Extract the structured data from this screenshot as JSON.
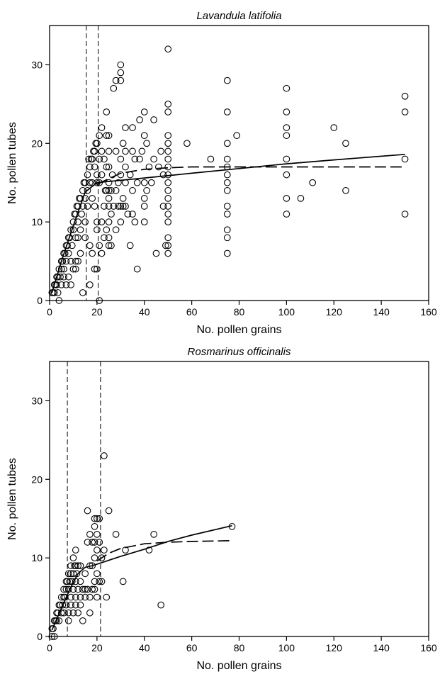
{
  "chart_data": [
    {
      "type": "scatter",
      "title": "Lavandula latifolia",
      "xlabel": "No. pollen grains",
      "ylabel": "No. pollen tubes",
      "xlim": [
        0,
        160
      ],
      "ylim": [
        0,
        35
      ],
      "xticks": [
        0,
        20,
        40,
        60,
        80,
        100,
        120,
        140,
        160
      ],
      "yticks": [
        0,
        10,
        20,
        30
      ],
      "grid": false,
      "points": [
        [
          1,
          1
        ],
        [
          1.5,
          1
        ],
        [
          2,
          2
        ],
        [
          2,
          1
        ],
        [
          2.5,
          2
        ],
        [
          3,
          3
        ],
        [
          3,
          2
        ],
        [
          3.5,
          1
        ],
        [
          3.5,
          3
        ],
        [
          4,
          0
        ],
        [
          4,
          4
        ],
        [
          4.5,
          3
        ],
        [
          5,
          5
        ],
        [
          5,
          2
        ],
        [
          5,
          4
        ],
        [
          5.5,
          5
        ],
        [
          6,
          6
        ],
        [
          6,
          4
        ],
        [
          6,
          3
        ],
        [
          6.5,
          6
        ],
        [
          7,
          7
        ],
        [
          7,
          5
        ],
        [
          7,
          2
        ],
        [
          7.5,
          7
        ],
        [
          8,
          8
        ],
        [
          8,
          6
        ],
        [
          8,
          3
        ],
        [
          8.5,
          8
        ],
        [
          9,
          9
        ],
        [
          9,
          5
        ],
        [
          9,
          2
        ],
        [
          9.5,
          7
        ],
        [
          10,
          10
        ],
        [
          10,
          9
        ],
        [
          10,
          4
        ],
        [
          10.5,
          11
        ],
        [
          11,
          11
        ],
        [
          11,
          8
        ],
        [
          11,
          5
        ],
        [
          11,
          4
        ],
        [
          11.5,
          12
        ],
        [
          12,
          12
        ],
        [
          12,
          10
        ],
        [
          12,
          8
        ],
        [
          12,
          5
        ],
        [
          12.5,
          13
        ],
        [
          13,
          13
        ],
        [
          13,
          9
        ],
        [
          13,
          6
        ],
        [
          13.5,
          11
        ],
        [
          14,
          14
        ],
        [
          14,
          12
        ],
        [
          14,
          1
        ],
        [
          14.5,
          15
        ],
        [
          15,
          15
        ],
        [
          15,
          13
        ],
        [
          15,
          10
        ],
        [
          15,
          8
        ],
        [
          16,
          14
        ],
        [
          16,
          16
        ],
        [
          16,
          12
        ],
        [
          16.5,
          18
        ],
        [
          17,
          17
        ],
        [
          17,
          15
        ],
        [
          17,
          7
        ],
        [
          17,
          2
        ],
        [
          17.5,
          18
        ],
        [
          18,
          18
        ],
        [
          18,
          15
        ],
        [
          18,
          13
        ],
        [
          18,
          6
        ],
        [
          18.5,
          19
        ],
        [
          19,
          19
        ],
        [
          19,
          17
        ],
        [
          19,
          12
        ],
        [
          19,
          4
        ],
        [
          19.5,
          20
        ],
        [
          20,
          20
        ],
        [
          20,
          16
        ],
        [
          20,
          15
        ],
        [
          20,
          10
        ],
        [
          20,
          9
        ],
        [
          20,
          4
        ],
        [
          21,
          21
        ],
        [
          21,
          0
        ],
        [
          21,
          18
        ],
        [
          21,
          15
        ],
        [
          21,
          7
        ],
        [
          22,
          22
        ],
        [
          22,
          19
        ],
        [
          22,
          16
        ],
        [
          22,
          10
        ],
        [
          22,
          6
        ],
        [
          23,
          18
        ],
        [
          23,
          12
        ],
        [
          23,
          8
        ],
        [
          23.5,
          14
        ],
        [
          24,
          24
        ],
        [
          24,
          21
        ],
        [
          24,
          17
        ],
        [
          24,
          14
        ],
        [
          24,
          9
        ],
        [
          25,
          21
        ],
        [
          25,
          19
        ],
        [
          25,
          17
        ],
        [
          25,
          15
        ],
        [
          25,
          14
        ],
        [
          25,
          13
        ],
        [
          25,
          12
        ],
        [
          25,
          10
        ],
        [
          25,
          8
        ],
        [
          25,
          7
        ],
        [
          26,
          14
        ],
        [
          26,
          11
        ],
        [
          26,
          7
        ],
        [
          26.5,
          16
        ],
        [
          27,
          27
        ],
        [
          27,
          12
        ],
        [
          28,
          28
        ],
        [
          28,
          19
        ],
        [
          28,
          14
        ],
        [
          28,
          9
        ],
        [
          29,
          15
        ],
        [
          29,
          12
        ],
        [
          30,
          30
        ],
        [
          30,
          29
        ],
        [
          30,
          28
        ],
        [
          30,
          18
        ],
        [
          30,
          12
        ],
        [
          30,
          10
        ],
        [
          30,
          16
        ],
        [
          31,
          20
        ],
        [
          31,
          13
        ],
        [
          31,
          12
        ],
        [
          32,
          22
        ],
        [
          32,
          19
        ],
        [
          32,
          17
        ],
        [
          32,
          15
        ],
        [
          32,
          12
        ],
        [
          33,
          11
        ],
        [
          34,
          16
        ],
        [
          34,
          7
        ],
        [
          35,
          22
        ],
        [
          35,
          19
        ],
        [
          35,
          14
        ],
        [
          35,
          11
        ],
        [
          36,
          18
        ],
        [
          36,
          10
        ],
        [
          37,
          15
        ],
        [
          37,
          4
        ],
        [
          38,
          23
        ],
        [
          38,
          18
        ],
        [
          39,
          19
        ],
        [
          40,
          24
        ],
        [
          40,
          21
        ],
        [
          40,
          15
        ],
        [
          40,
          13
        ],
        [
          40,
          12
        ],
        [
          40,
          10
        ],
        [
          41,
          14
        ],
        [
          41,
          20
        ],
        [
          42,
          17
        ],
        [
          43,
          15
        ],
        [
          44,
          23
        ],
        [
          44,
          18
        ],
        [
          45,
          6
        ],
        [
          46,
          17
        ],
        [
          47,
          19
        ],
        [
          48,
          16
        ],
        [
          48,
          12
        ],
        [
          49,
          7
        ],
        [
          50,
          32
        ],
        [
          50,
          25
        ],
        [
          50,
          24
        ],
        [
          50,
          21
        ],
        [
          50,
          20
        ],
        [
          50,
          19
        ],
        [
          50,
          18
        ],
        [
          50,
          17
        ],
        [
          50,
          16
        ],
        [
          50,
          15
        ],
        [
          50,
          14
        ],
        [
          50,
          13
        ],
        [
          50,
          12
        ],
        [
          50,
          11
        ],
        [
          50,
          10
        ],
        [
          50,
          8
        ],
        [
          50,
          7
        ],
        [
          50,
          6
        ],
        [
          58,
          20
        ],
        [
          68,
          18
        ],
        [
          75,
          28
        ],
        [
          75,
          24
        ],
        [
          75,
          20
        ],
        [
          75,
          18
        ],
        [
          75,
          17
        ],
        [
          75,
          16
        ],
        [
          75,
          15
        ],
        [
          75,
          14
        ],
        [
          75,
          12
        ],
        [
          75,
          11
        ],
        [
          75,
          9
        ],
        [
          75,
          8
        ],
        [
          75,
          6
        ],
        [
          79,
          21
        ],
        [
          100,
          27
        ],
        [
          100,
          24
        ],
        [
          100,
          22
        ],
        [
          100,
          21
        ],
        [
          100,
          18
        ],
        [
          100,
          16
        ],
        [
          100,
          13
        ],
        [
          100,
          11
        ],
        [
          106,
          13
        ],
        [
          111,
          15
        ],
        [
          120,
          22
        ],
        [
          125,
          20
        ],
        [
          125,
          14
        ],
        [
          150,
          26
        ],
        [
          150,
          24
        ],
        [
          150,
          18
        ],
        [
          150,
          11
        ]
      ],
      "vlines": [
        15.5,
        20.5
      ],
      "fits": [
        {
          "style": "solid",
          "x": [
            1,
            5,
            10,
            15,
            20,
            40,
            60,
            80,
            100,
            120,
            150
          ],
          "y": [
            1,
            5,
            9.5,
            13.8,
            15,
            15.6,
            16.2,
            16.8,
            17.4,
            17.9,
            18.6
          ]
        },
        {
          "style": "dashed",
          "x": [
            20,
            30,
            40,
            50,
            60,
            80,
            100,
            150
          ],
          "y": [
            14.8,
            16.2,
            16.7,
            16.9,
            17,
            17,
            17,
            17
          ]
        }
      ]
    },
    {
      "type": "scatter",
      "title": "Rosmarinus officinalis",
      "xlabel": "No. pollen grains",
      "ylabel": "No. pollen tubes",
      "xlim": [
        0,
        160
      ],
      "ylim": [
        0,
        35
      ],
      "xticks": [
        0,
        20,
        40,
        60,
        80,
        100,
        120,
        140,
        160
      ],
      "yticks": [
        0,
        10,
        20,
        30
      ],
      "grid": false,
      "points": [
        [
          1,
          0
        ],
        [
          1,
          1
        ],
        [
          1.5,
          1
        ],
        [
          2,
          0
        ],
        [
          2,
          2
        ],
        [
          2.5,
          2
        ],
        [
          3,
          3
        ],
        [
          3,
          2
        ],
        [
          3.5,
          3
        ],
        [
          4,
          4
        ],
        [
          4,
          2
        ],
        [
          4.5,
          4
        ],
        [
          5,
          5
        ],
        [
          5,
          3
        ],
        [
          5.5,
          4
        ],
        [
          6,
          6
        ],
        [
          6,
          5
        ],
        [
          6,
          3
        ],
        [
          6.5,
          5
        ],
        [
          7,
          7
        ],
        [
          7,
          6
        ],
        [
          7,
          4
        ],
        [
          7.5,
          7
        ],
        [
          8,
          8
        ],
        [
          8,
          6
        ],
        [
          8,
          2
        ],
        [
          8,
          3
        ],
        [
          8.5,
          7
        ],
        [
          9,
          9
        ],
        [
          9,
          8
        ],
        [
          9,
          5
        ],
        [
          9,
          4
        ],
        [
          9.5,
          7
        ],
        [
          10,
          10
        ],
        [
          10,
          8
        ],
        [
          10,
          6
        ],
        [
          10,
          3
        ],
        [
          10.5,
          9
        ],
        [
          11,
          11
        ],
        [
          11,
          9
        ],
        [
          11,
          7
        ],
        [
          11,
          5
        ],
        [
          11,
          4
        ],
        [
          11.5,
          8
        ],
        [
          12,
          9
        ],
        [
          12,
          6
        ],
        [
          12,
          3
        ],
        [
          13,
          9
        ],
        [
          13,
          7
        ],
        [
          13,
          5
        ],
        [
          13,
          4
        ],
        [
          14,
          6
        ],
        [
          14,
          2
        ],
        [
          15,
          8
        ],
        [
          15,
          6
        ],
        [
          15,
          5
        ],
        [
          16,
          16
        ],
        [
          16,
          12
        ],
        [
          16,
          6
        ],
        [
          17,
          13
        ],
        [
          17,
          9
        ],
        [
          17,
          5
        ],
        [
          17,
          3
        ],
        [
          18,
          12
        ],
        [
          18,
          9
        ],
        [
          18,
          6
        ],
        [
          19,
          15
        ],
        [
          19,
          14
        ],
        [
          19,
          12
        ],
        [
          19,
          10
        ],
        [
          19,
          7
        ],
        [
          19,
          6
        ],
        [
          20,
          15
        ],
        [
          20,
          13
        ],
        [
          20,
          11
        ],
        [
          20,
          8
        ],
        [
          20,
          5
        ],
        [
          21,
          15
        ],
        [
          21,
          12
        ],
        [
          21,
          7
        ],
        [
          22,
          10
        ],
        [
          22,
          7
        ],
        [
          23,
          23
        ],
        [
          23,
          11
        ],
        [
          24,
          5
        ],
        [
          25,
          16
        ],
        [
          28,
          13
        ],
        [
          31,
          7
        ],
        [
          32,
          11
        ],
        [
          42,
          11
        ],
        [
          44,
          13
        ],
        [
          47,
          4
        ],
        [
          77,
          14
        ]
      ],
      "vlines": [
        7.5,
        21.5
      ],
      "fits": [
        {
          "style": "solid",
          "x": [
            1,
            3,
            6,
            9,
            12,
            15,
            18,
            22,
            30,
            40,
            50,
            60,
            77
          ],
          "y": [
            0.8,
            2.2,
            4.3,
            6.3,
            8,
            8.8,
            9,
            9.4,
            10.2,
            11.1,
            12.1,
            12.9,
            14.1
          ]
        },
        {
          "style": "dashed",
          "x": [
            20,
            25,
            30,
            40,
            50,
            60,
            77
          ],
          "y": [
            9.6,
            10.6,
            11.2,
            11.8,
            12,
            12.1,
            12.2
          ]
        }
      ]
    }
  ]
}
